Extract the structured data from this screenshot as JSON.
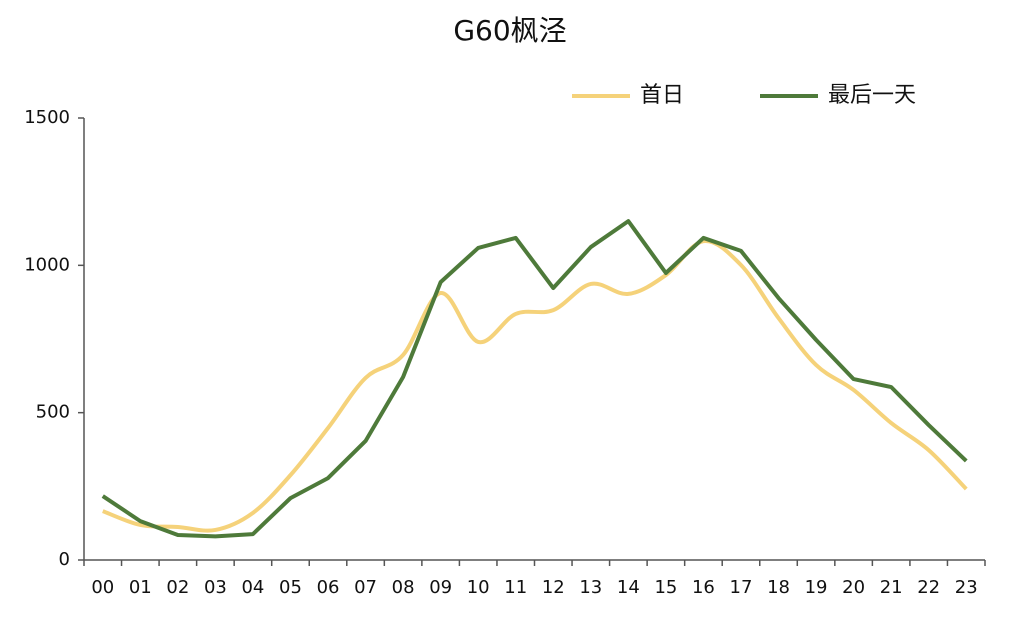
{
  "chart_data": {
    "type": "line",
    "title": "G60枫泾",
    "categories": [
      "00",
      "01",
      "02",
      "03",
      "04",
      "05",
      "06",
      "07",
      "08",
      "09",
      "10",
      "11",
      "12",
      "13",
      "14",
      "15",
      "16",
      "17",
      "18",
      "19",
      "20",
      "21",
      "22",
      "23"
    ],
    "series": [
      {
        "name": "首日",
        "color": "#f5d27a",
        "smooth": true,
        "values": [
          166,
          119,
          112,
          102,
          160,
          288,
          448,
          618,
          696,
          906,
          740,
          835,
          848,
          937,
          903,
          967,
          1082,
          1001,
          821,
          662,
          577,
          465,
          373,
          241
        ]
      },
      {
        "name": "最后一天",
        "color": "#4e7a3a",
        "smooth": false,
        "values": [
          217,
          132,
          85,
          80,
          88,
          210,
          278,
          404,
          621,
          943,
          1059,
          1093,
          923,
          1062,
          1150,
          974,
          1093,
          1049,
          889,
          747,
          614,
          587,
          458,
          336
        ]
      }
    ],
    "ylim": [
      0,
      1500
    ],
    "yticks": [
      0,
      500,
      1000,
      1500
    ],
    "grid": false,
    "legend": "top-right"
  }
}
